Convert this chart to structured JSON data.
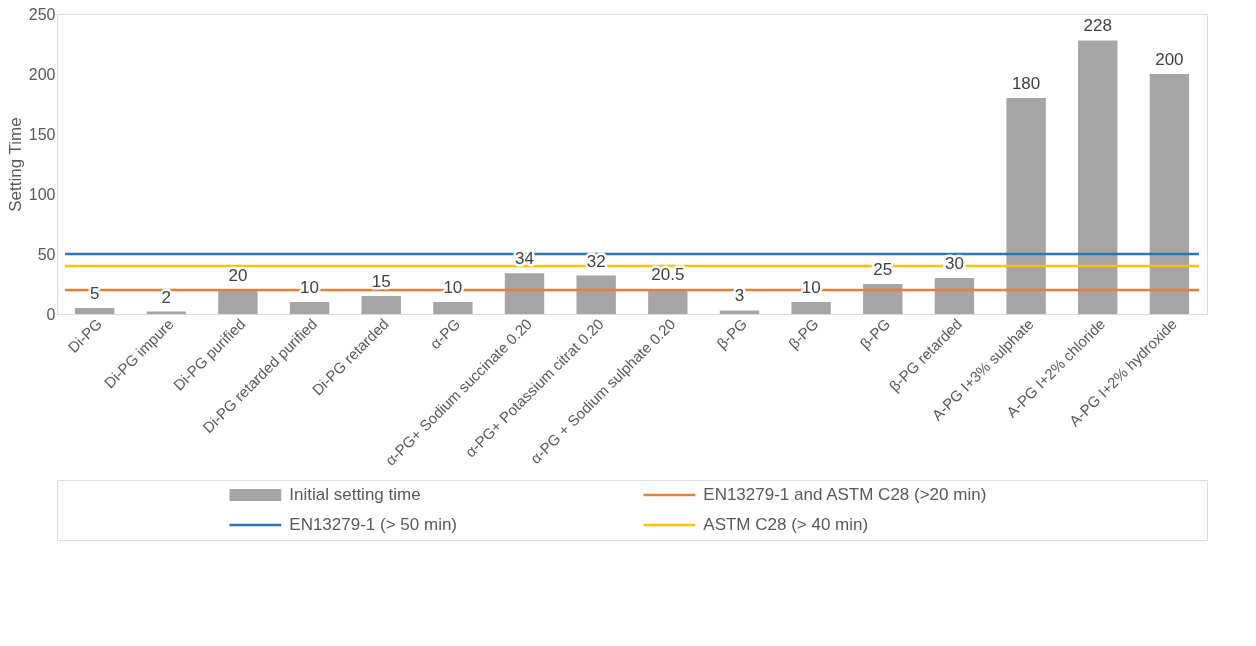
{
  "chart_data": {
    "type": "bar",
    "ylabel": "Setting Time",
    "categories": [
      "Di-PG",
      "Di-PG impure",
      "Di-PG purified",
      "Di-PG retarded purified",
      "Di-PG retarded",
      "α-PG",
      "α-PG+ Sodium succinate 0.20",
      "α-PG+ Potassium citrat 0.20",
      "α-PG + Sodium sulphate 0.20",
      "β-PG",
      "β-PG",
      "β-PG",
      "β-PG retarded",
      "A-PG I+3% sulphate",
      "A-PG I+2% chloride",
      "A-PG I+2% hydroxide"
    ],
    "series": [
      {
        "name": "Initial setting time",
        "color": "#a5a5a5",
        "values": [
          5,
          2,
          20,
          10,
          15,
          10,
          34,
          32,
          20.5,
          3,
          10,
          25,
          30,
          180,
          228,
          200
        ]
      }
    ],
    "ylim": [
      0,
      250
    ],
    "yticks": [
      0,
      50,
      100,
      150,
      200,
      250
    ],
    "ref_lines": [
      {
        "axis": "y",
        "value": 20,
        "label": "EN13279-1 and ASTM C28 (>20 min)",
        "color": "#ed7d31"
      },
      {
        "axis": "y",
        "value": 50,
        "label": "EN13279-1 (> 50 min)",
        "color": "#2e75b6"
      },
      {
        "axis": "y",
        "value": 40,
        "label": "ASTM C28 (> 40 min)",
        "color": "#ffc000"
      }
    ],
    "data_labels": true,
    "grid": false,
    "legend": "bottom"
  }
}
